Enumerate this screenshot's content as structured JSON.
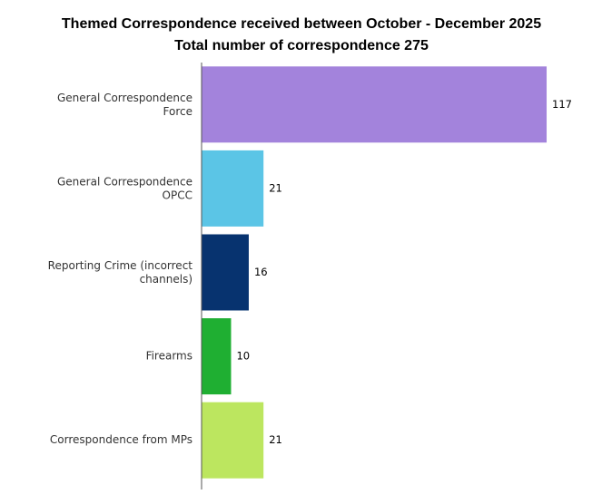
{
  "chart_data": {
    "type": "hbar",
    "title": "Themed Correspondence received between October - December 2025",
    "subtitle": "Total number of correspondence 275",
    "categories": [
      "General Correspondence Force",
      "General Correspondence OPCC",
      "Reporting Crime (incorrect channels)",
      "Firearms",
      "Correspondence from MPs"
    ],
    "values": [
      117,
      21,
      16,
      10,
      21
    ],
    "colors": [
      "#a383dc",
      "#5bc5e6",
      "#07336f",
      "#1faf32",
      "#bce65f"
    ],
    "xlim": [
      0,
      125
    ]
  }
}
